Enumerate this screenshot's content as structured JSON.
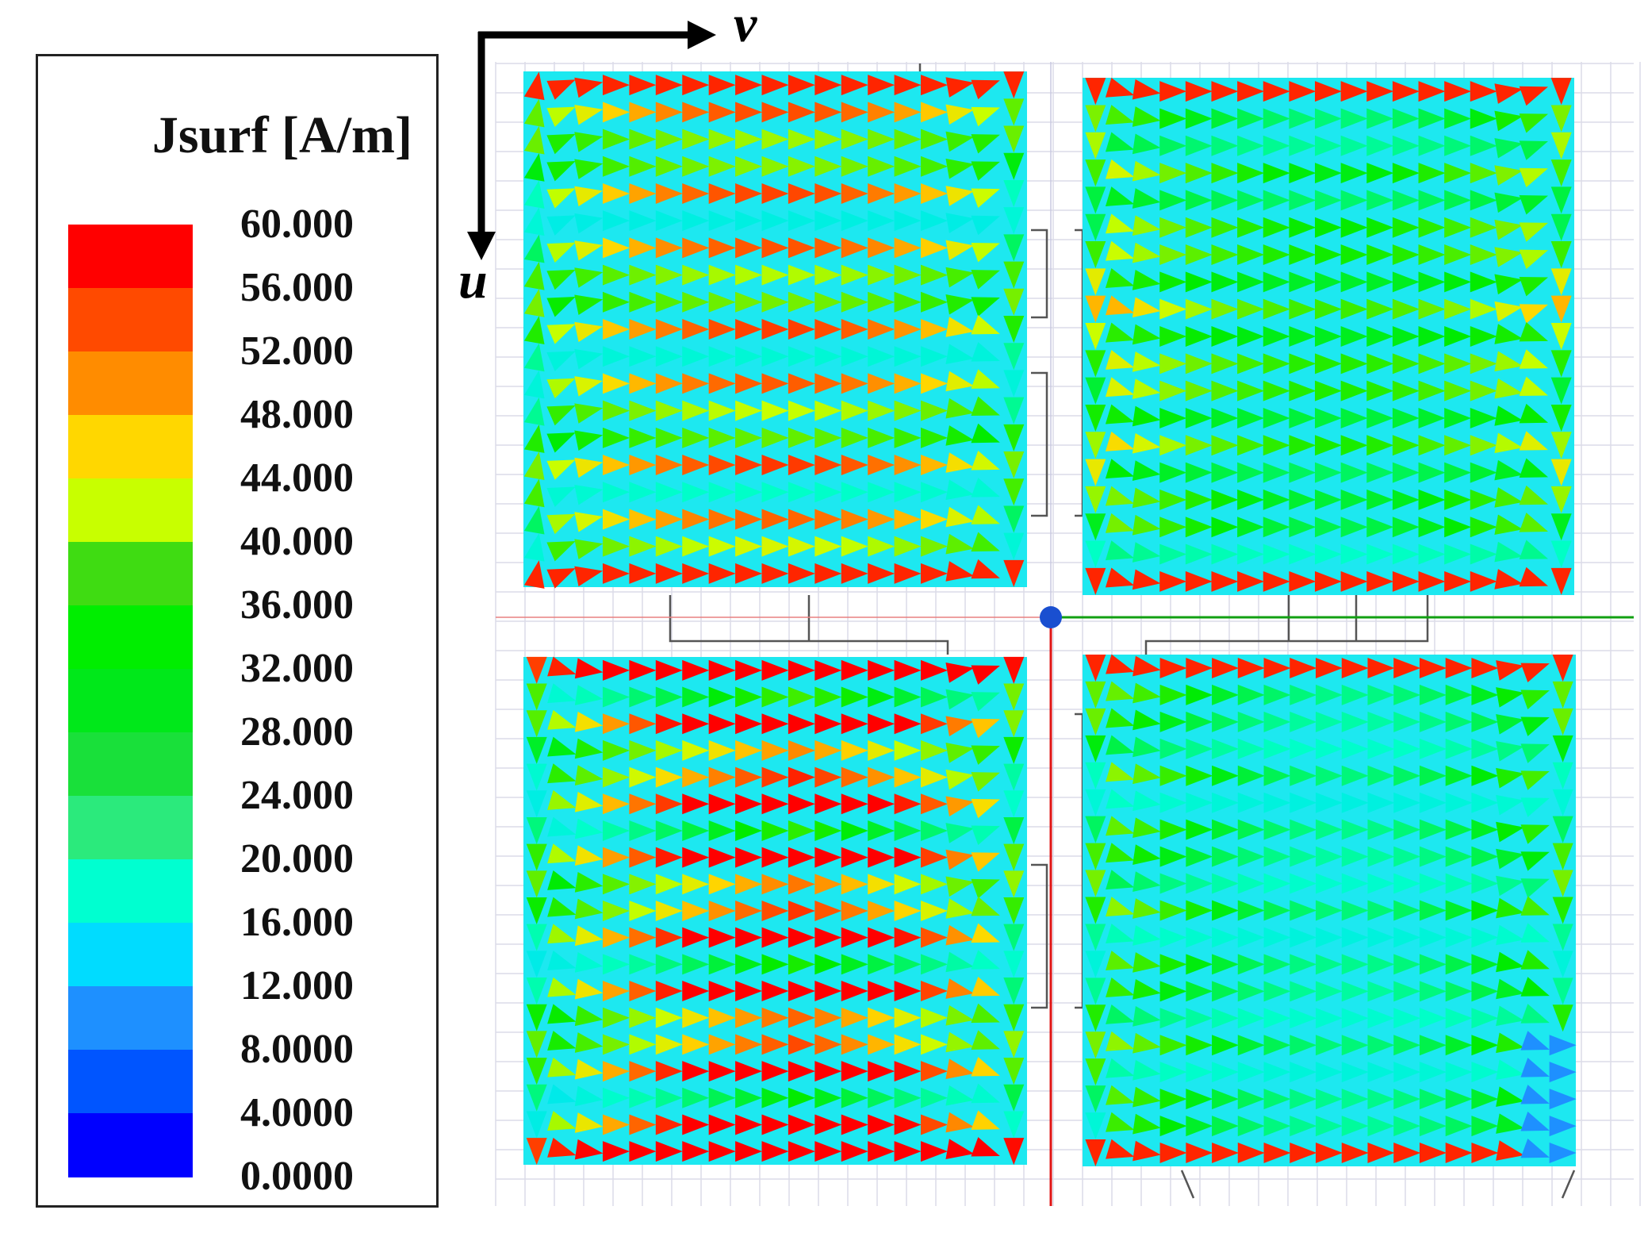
{
  "legend": {
    "title": "Jsurf [A/m]",
    "ticks": [
      "60.000",
      "56.000",
      "52.000",
      "48.000",
      "44.000",
      "40.000",
      "36.000",
      "32.000",
      "28.000",
      "24.000",
      "20.000",
      "16.000",
      "12.000",
      "8.0000",
      "4.0000",
      "0.0000"
    ],
    "band_colors": [
      "#ff0000",
      "#ff4a00",
      "#ff8c00",
      "#ffd700",
      "#c8ff00",
      "#3fdc12",
      "#00ee00",
      "#00e81a",
      "#19e03a",
      "#2bea7c",
      "#00ffd0",
      "#00dcff",
      "#1e90ff",
      "#0055ff",
      "#0000ff"
    ]
  },
  "axes": {
    "horizontal_label": "v",
    "vertical_label": "u"
  },
  "colors": {
    "patch": "#1de8f0",
    "feed": "#1a4fd0",
    "grid": "#dcdce8",
    "axis_x": "#12a012",
    "axis_y": "#e01414"
  }
}
